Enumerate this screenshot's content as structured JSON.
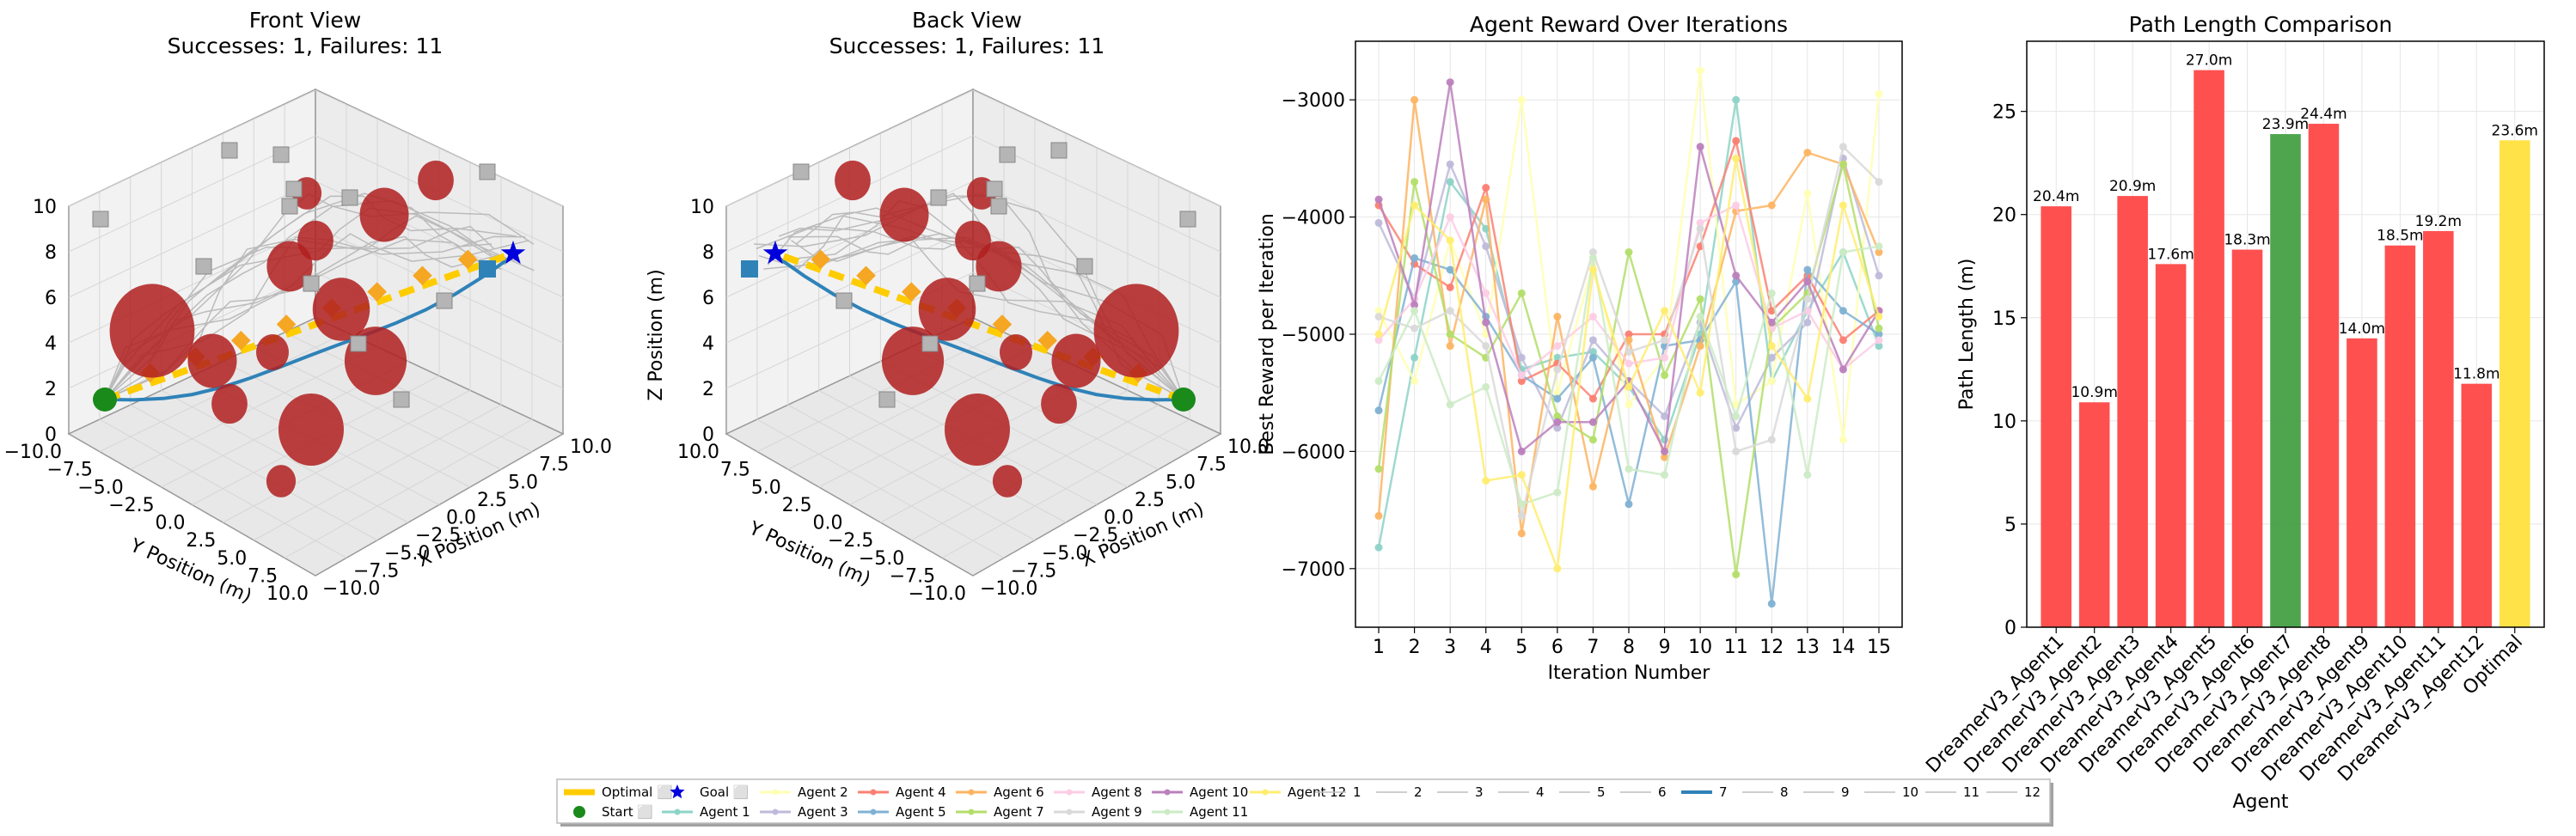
{
  "front_view": {
    "title_line1": "Front View",
    "title_line2": "Successes: 1, Failures: 11",
    "xlabel": "X Position (m)",
    "ylabel": "Y Position (m)",
    "z_ticks": [
      "0",
      "2",
      "4",
      "6",
      "8",
      "10"
    ],
    "y_ticks": [
      "−10.0",
      "−7.5",
      "−5.0",
      "−2.5",
      "0.0",
      "2.5",
      "5.0",
      "7.5",
      "10.0"
    ],
    "x_ticks": [
      "−10.0",
      "−7.5",
      "−5.0",
      "−2.5",
      "0.0",
      "2.5",
      "5.0",
      "7.5",
      "10.0"
    ]
  },
  "back_view": {
    "title_line1": "Back View",
    "title_line2": "Successes: 1, Failures: 11",
    "xlabel": "X Position (m)",
    "ylabel": "Y Position (m)",
    "zlabel": "Z Position (m)",
    "z_ticks": [
      "0",
      "2",
      "4",
      "6",
      "8",
      "10"
    ],
    "y_ticks": [
      "10.0",
      "7.5",
      "5.0",
      "2.5",
      "0.0",
      "−2.5",
      "−5.0",
      "−7.5",
      "−10.0"
    ],
    "x_ticks": [
      "−10.0",
      "−7.5",
      "−5.0",
      "−2.5",
      "0.0",
      "2.5",
      "5.0",
      "7.5",
      "10.0"
    ]
  },
  "chart_data": [
    {
      "type": "line",
      "title": "Agent Reward Over Iterations",
      "xlabel": "Iteration Number",
      "ylabel": "Best Reward per Iteration",
      "x": [
        1,
        2,
        3,
        4,
        5,
        6,
        7,
        8,
        9,
        10,
        11,
        12,
        13,
        14,
        15
      ],
      "ylim": [
        -7500,
        -2500
      ],
      "yticks": [
        -7000,
        -6000,
        -5000,
        -4000,
        -3000
      ],
      "ytick_labels": [
        "−7000",
        "−6000",
        "−5000",
        "−4000",
        "−3000"
      ],
      "grid": true,
      "series": [
        {
          "name": "Agent 1",
          "color": "#8dd3c7",
          "values": [
            -6820,
            -5200,
            -3700,
            -4100,
            -5300,
            -5200,
            -5150,
            -5450,
            -5900,
            -5000,
            -3000,
            -5400,
            -4800,
            -4300,
            -5100
          ]
        },
        {
          "name": "Agent 2",
          "color": "#ffffb3",
          "values": [
            -4800,
            -5400,
            -4200,
            -5000,
            -3000,
            -5500,
            -4400,
            -5600,
            -5200,
            -2750,
            -5600,
            -5400,
            -3800,
            -5900,
            -2950
          ]
        },
        {
          "name": "Agent 3",
          "color": "#bebada",
          "values": [
            -4050,
            -4700,
            -3550,
            -4250,
            -5200,
            -5800,
            -5050,
            -5400,
            -5700,
            -4900,
            -5800,
            -5200,
            -4900,
            -3500,
            -4500
          ]
        },
        {
          "name": "Agent 4",
          "color": "#fb8072",
          "values": [
            -3900,
            -4400,
            -4600,
            -3750,
            -5400,
            -5250,
            -5550,
            -5000,
            -5000,
            -4250,
            -3350,
            -4800,
            -4500,
            -5050,
            -4800
          ]
        },
        {
          "name": "Agent 5",
          "color": "#80b1d3",
          "values": [
            -5650,
            -4350,
            -4450,
            -4850,
            -5350,
            -5550,
            -5200,
            -6450,
            -5100,
            -5050,
            -4550,
            -7300,
            -4450,
            -4800,
            -5000
          ]
        },
        {
          "name": "Agent 6",
          "color": "#fdb462",
          "values": [
            -6550,
            -3000,
            -5100,
            -3850,
            -6700,
            -4850,
            -6300,
            -5050,
            -6050,
            -5100,
            -3950,
            -3900,
            -3450,
            -3550,
            -4300
          ]
        },
        {
          "name": "Agent 7",
          "color": "#b3de69",
          "values": [
            -6150,
            -3700,
            -5000,
            -5200,
            -4650,
            -5700,
            -5900,
            -4300,
            -5350,
            -4700,
            -7050,
            -4950,
            -4650,
            -3550,
            -4950
          ]
        },
        {
          "name": "Agent 8",
          "color": "#fccde5",
          "values": [
            -5050,
            -4700,
            -4000,
            -4650,
            -5350,
            -5100,
            -4850,
            -5250,
            -5200,
            -4050,
            -3900,
            -4950,
            -4800,
            -5300,
            -5050
          ]
        },
        {
          "name": "Agent 9",
          "color": "#d9d9d9",
          "values": [
            -4850,
            -4950,
            -4800,
            -5100,
            -6550,
            -5300,
            -4300,
            -5150,
            -5050,
            -4100,
            -6000,
            -5900,
            -4700,
            -3400,
            -3700
          ]
        },
        {
          "name": "Agent 10",
          "color": "#bc80bd",
          "values": [
            -3850,
            -4750,
            -2850,
            -4900,
            -6000,
            -5750,
            -5750,
            -5400,
            -6000,
            -3400,
            -4500,
            -4900,
            -4550,
            -5300,
            -4800
          ]
        },
        {
          "name": "Agent 11",
          "color": "#ccebc5",
          "values": [
            -5400,
            -4800,
            -5600,
            -5450,
            -6450,
            -6350,
            -4350,
            -6150,
            -6200,
            -4850,
            -5700,
            -4650,
            -6200,
            -4300,
            -4250
          ]
        },
        {
          "name": "Agent 12",
          "color": "#ffed6f",
          "values": [
            -5000,
            -3900,
            -4200,
            -6250,
            -6200,
            -7000,
            -4450,
            -5450,
            -4800,
            -5500,
            -3500,
            -5100,
            -5550,
            -3900,
            -4850
          ]
        }
      ]
    },
    {
      "type": "bar",
      "title": "Path Length Comparison",
      "xlabel": "Agent",
      "ylabel": "Path Length (m)",
      "ylim": [
        0,
        28.4
      ],
      "yticks": [
        0,
        5,
        10,
        15,
        20,
        25
      ],
      "grid": true,
      "categories": [
        "DreamerV3_Agent1",
        "DreamerV3_Agent2",
        "DreamerV3_Agent3",
        "DreamerV3_Agent4",
        "DreamerV3_Agent5",
        "DreamerV3_Agent6",
        "DreamerV3_Agent7",
        "DreamerV3_Agent8",
        "DreamerV3_Agent9",
        "DreamerV3_Agent10",
        "DreamerV3_Agent11",
        "DreamerV3_Agent12",
        "Optimal"
      ],
      "values": [
        20.4,
        10.9,
        20.9,
        17.6,
        27.0,
        18.3,
        23.9,
        24.4,
        14.0,
        18.5,
        19.2,
        11.8,
        23.6
      ],
      "labels": [
        "20.4m",
        "10.9m",
        "20.9m",
        "17.6m",
        "27.0m",
        "18.3m",
        "23.9m",
        "24.4m",
        "14.0m",
        "18.5m",
        "19.2m",
        "11.8m",
        "23.6m"
      ],
      "colors": [
        "#ff4747",
        "#ff4747",
        "#ff4747",
        "#ff4747",
        "#ff4747",
        "#ff4747",
        "#45a045",
        "#ff4747",
        "#ff4747",
        "#ff4747",
        "#ff4747",
        "#ff4747",
        "#ffe03e"
      ]
    }
  ],
  "legend": {
    "entries": [
      {
        "label": "Optimal ⬜",
        "kind": "thick",
        "color": "#ffcc00"
      },
      {
        "label": "Start ⬜",
        "kind": "dot",
        "color": "#1a8a1a"
      },
      {
        "label": "Goal ⬜",
        "kind": "star",
        "color": "#0000dd"
      },
      {
        "label": "Agent 1",
        "kind": "line",
        "color": "#8dd3c7"
      },
      {
        "label": "Agent 2",
        "kind": "line",
        "color": "#ffffb3"
      },
      {
        "label": "Agent 3",
        "kind": "line",
        "color": "#bebada"
      },
      {
        "label": "Agent 4",
        "kind": "line",
        "color": "#fb8072"
      },
      {
        "label": "Agent 5",
        "kind": "line",
        "color": "#80b1d3"
      },
      {
        "label": "Agent 6",
        "kind": "line",
        "color": "#fdb462"
      },
      {
        "label": "Agent 7",
        "kind": "line",
        "color": "#b3de69"
      },
      {
        "label": "Agent 8",
        "kind": "line",
        "color": "#fccde5"
      },
      {
        "label": "Agent 9",
        "kind": "line",
        "color": "#d9d9d9"
      },
      {
        "label": "Agent 10",
        "kind": "line",
        "color": "#bc80bd"
      },
      {
        "label": "Agent 11",
        "kind": "line",
        "color": "#ccebc5"
      },
      {
        "label": "Agent 12",
        "kind": "line",
        "color": "#ffed6f"
      },
      {
        "label": "1",
        "kind": "plain",
        "color": "#bdbdbd"
      },
      {
        "label": "2",
        "kind": "plain",
        "color": "#bdbdbd"
      },
      {
        "label": "3",
        "kind": "plain",
        "color": "#bdbdbd"
      },
      {
        "label": "4",
        "kind": "plain",
        "color": "#bdbdbd"
      },
      {
        "label": "5",
        "kind": "plain",
        "color": "#bdbdbd"
      },
      {
        "label": "6",
        "kind": "plain",
        "color": "#bdbdbd"
      },
      {
        "label": "7",
        "kind": "plain",
        "color": "#2f82b8"
      },
      {
        "label": "8",
        "kind": "plain",
        "color": "#bdbdbd"
      },
      {
        "label": "9",
        "kind": "plain",
        "color": "#bdbdbd"
      },
      {
        "label": "10",
        "kind": "plain",
        "color": "#bdbdbd"
      },
      {
        "label": "11",
        "kind": "plain",
        "color": "#bdbdbd"
      },
      {
        "label": "12",
        "kind": "plain",
        "color": "#bdbdbd"
      }
    ]
  }
}
